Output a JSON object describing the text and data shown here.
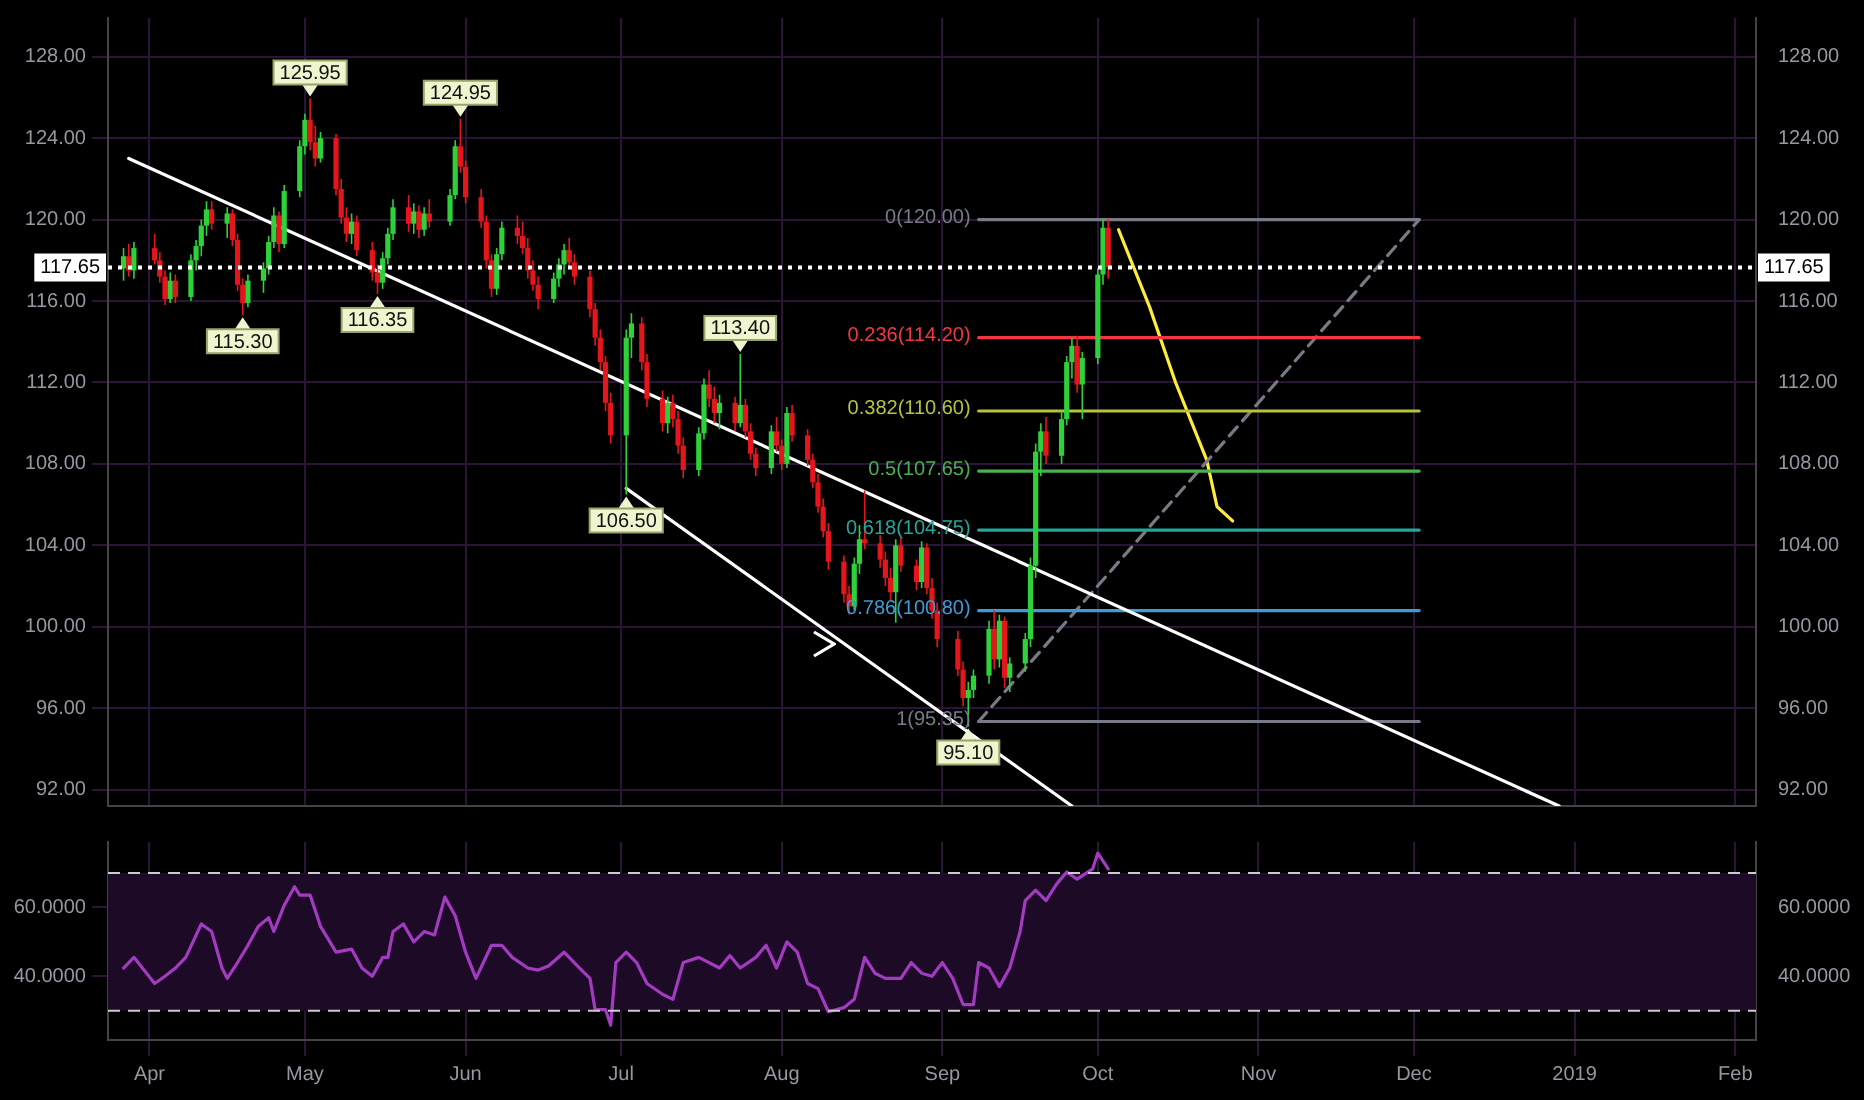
{
  "chart_data": [
    {
      "type": "candlestick",
      "xlim": [
        "2018-03-24",
        "2019-02-05"
      ],
      "xticks": [
        {
          "value": "2018-04-01",
          "label": null
        },
        {
          "value": "2018-05-01",
          "label": null
        },
        {
          "value": "2018-06-01",
          "label": null
        },
        {
          "value": "2018-07-01",
          "label": null
        },
        {
          "value": "2018-08-01",
          "label": null
        },
        {
          "value": "2018-09-01",
          "label": null
        },
        {
          "value": "2018-10-01",
          "label": null
        },
        {
          "value": "2018-11-01",
          "label": null
        },
        {
          "value": "2018-12-01",
          "label": null
        },
        {
          "value": "2019-01-01",
          "label": null
        },
        {
          "value": "2019-02-01",
          "label": null
        }
      ],
      "ylim": [
        91.2,
        129.9
      ],
      "yticks": [
        {
          "value": 92,
          "label": "92.00"
        },
        {
          "value": 96,
          "label": "96.00"
        },
        {
          "value": 100,
          "label": "100.00"
        },
        {
          "value": 104,
          "label": "104.00"
        },
        {
          "value": 108,
          "label": "108.00"
        },
        {
          "value": 112,
          "label": "112.00"
        },
        {
          "value": 116,
          "label": "116.00"
        },
        {
          "value": 120,
          "label": "120.00"
        },
        {
          "value": 124,
          "label": "124.00"
        },
        {
          "value": 128,
          "label": "128.00"
        }
      ],
      "y2lim": [
        91.2,
        129.9
      ],
      "y2ticks": [
        {
          "value": 92,
          "label": "92.00"
        },
        {
          "value": 96,
          "label": "96.00"
        },
        {
          "value": 100,
          "label": "100.00"
        },
        {
          "value": 104,
          "label": "104.00"
        },
        {
          "value": 108,
          "label": "108.00"
        },
        {
          "value": 112,
          "label": "112.00"
        },
        {
          "value": 116,
          "label": "116.00"
        },
        {
          "value": 120,
          "label": "120.00"
        },
        {
          "value": 124,
          "label": "124.00"
        },
        {
          "value": 128,
          "label": "128.00"
        }
      ],
      "tick_labels": "y",
      "grid": true,
      "legend": false,
      "x": [
        "2018-03-27",
        "2018-03-28",
        "2018-03-29",
        "2018-04-02",
        "2018-04-03",
        "2018-04-04",
        "2018-04-05",
        "2018-04-06",
        "2018-04-09",
        "2018-04-10",
        "2018-04-11",
        "2018-04-12",
        "2018-04-13",
        "2018-04-16",
        "2018-04-17",
        "2018-04-18",
        "2018-04-19",
        "2018-04-20",
        "2018-04-23",
        "2018-04-24",
        "2018-04-25",
        "2018-04-26",
        "2018-04-27",
        "2018-04-30",
        "2018-05-01",
        "2018-05-02",
        "2018-05-03",
        "2018-05-04",
        "2018-05-07",
        "2018-05-08",
        "2018-05-09",
        "2018-05-10",
        "2018-05-11",
        "2018-05-14",
        "2018-05-15",
        "2018-05-16",
        "2018-05-17",
        "2018-05-18",
        "2018-05-21",
        "2018-05-22",
        "2018-05-23",
        "2018-05-24",
        "2018-05-25",
        "2018-05-29",
        "2018-05-30",
        "2018-05-31",
        "2018-06-01",
        "2018-06-04",
        "2018-06-05",
        "2018-06-06",
        "2018-06-07",
        "2018-06-08",
        "2018-06-11",
        "2018-06-12",
        "2018-06-13",
        "2018-06-14",
        "2018-06-15",
        "2018-06-18",
        "2018-06-19",
        "2018-06-20",
        "2018-06-21",
        "2018-06-22",
        "2018-06-25",
        "2018-06-26",
        "2018-06-27",
        "2018-06-28",
        "2018-06-29",
        "2018-07-02",
        "2018-07-03",
        "2018-07-05",
        "2018-07-06",
        "2018-07-09",
        "2018-07-10",
        "2018-07-11",
        "2018-07-12",
        "2018-07-13",
        "2018-07-16",
        "2018-07-17",
        "2018-07-18",
        "2018-07-19",
        "2018-07-20",
        "2018-07-23",
        "2018-07-24",
        "2018-07-25",
        "2018-07-26",
        "2018-07-27",
        "2018-07-30",
        "2018-07-31",
        "2018-08-01",
        "2018-08-02",
        "2018-08-03",
        "2018-08-06",
        "2018-08-07",
        "2018-08-08",
        "2018-08-09",
        "2018-08-10",
        "2018-08-13",
        "2018-08-14",
        "2018-08-15",
        "2018-08-16",
        "2018-08-17",
        "2018-08-20",
        "2018-08-21",
        "2018-08-22",
        "2018-08-23",
        "2018-08-24",
        "2018-08-27",
        "2018-08-28",
        "2018-08-29",
        "2018-08-30",
        "2018-08-31",
        "2018-09-04",
        "2018-09-05",
        "2018-09-06",
        "2018-09-07",
        "2018-09-10",
        "2018-09-11",
        "2018-09-12",
        "2018-09-13",
        "2018-09-14",
        "2018-09-17",
        "2018-09-18",
        "2018-09-19",
        "2018-09-20",
        "2018-09-21",
        "2018-09-24",
        "2018-09-25",
        "2018-09-26",
        "2018-09-27",
        "2018-09-28",
        "2018-10-01",
        "2018-10-02",
        "2018-10-03"
      ],
      "ohlc": [
        [
          117.6,
          118.6,
          117.0,
          118.2
        ],
        [
          118.2,
          118.8,
          117.2,
          117.5
        ],
        [
          117.5,
          118.9,
          117.1,
          118.6
        ],
        [
          118.6,
          119.3,
          117.8,
          118.0
        ],
        [
          118.0,
          118.4,
          116.9,
          117.2
        ],
        [
          117.2,
          117.5,
          115.8,
          116.1
        ],
        [
          116.1,
          117.4,
          115.9,
          117.0
        ],
        [
          117.0,
          117.3,
          115.9,
          116.2
        ],
        [
          116.2,
          118.3,
          116.0,
          118.0
        ],
        [
          118.0,
          119.0,
          117.5,
          118.7
        ],
        [
          118.7,
          120.0,
          118.2,
          119.7
        ],
        [
          119.7,
          120.9,
          119.2,
          120.5
        ],
        [
          120.5,
          120.9,
          119.5,
          119.8
        ],
        [
          119.8,
          120.6,
          119.1,
          120.3
        ],
        [
          120.3,
          120.5,
          118.7,
          119.0
        ],
        [
          119.0,
          119.3,
          116.5,
          116.8
        ],
        [
          116.8,
          117.1,
          115.3,
          115.9
        ],
        [
          115.9,
          117.3,
          115.7,
          117.0
        ],
        [
          117.0,
          117.9,
          116.4,
          117.6
        ],
        [
          117.6,
          119.2,
          117.3,
          118.9
        ],
        [
          118.9,
          120.6,
          118.6,
          120.2
        ],
        [
          120.2,
          120.4,
          118.4,
          118.8
        ],
        [
          118.8,
          121.7,
          118.6,
          121.4
        ],
        [
          121.4,
          123.9,
          121.1,
          123.6
        ],
        [
          123.6,
          125.2,
          123.2,
          124.9
        ],
        [
          124.9,
          125.95,
          123.4,
          123.8
        ],
        [
          123.8,
          124.6,
          122.6,
          123.0
        ],
        [
          123.0,
          124.3,
          122.8,
          124.0
        ],
        [
          124.0,
          124.2,
          121.2,
          121.5
        ],
        [
          121.5,
          122.0,
          119.8,
          120.1
        ],
        [
          120.1,
          120.6,
          118.9,
          119.3
        ],
        [
          119.3,
          120.3,
          118.8,
          119.9
        ],
        [
          119.9,
          120.2,
          118.2,
          118.5
        ],
        [
          118.5,
          118.9,
          117.0,
          117.4
        ],
        [
          117.4,
          117.8,
          116.35,
          116.9
        ],
        [
          116.9,
          118.4,
          116.6,
          118.1
        ],
        [
          118.1,
          119.6,
          117.8,
          119.3
        ],
        [
          119.3,
          121.0,
          119.0,
          120.6
        ],
        [
          120.6,
          121.2,
          119.4,
          119.8
        ],
        [
          119.8,
          120.8,
          119.3,
          120.4
        ],
        [
          120.4,
          120.7,
          119.1,
          119.5
        ],
        [
          119.5,
          120.6,
          119.2,
          120.3
        ],
        [
          120.3,
          121.0,
          119.6,
          119.9
        ],
        [
          119.9,
          121.5,
          119.7,
          121.2
        ],
        [
          121.2,
          123.9,
          121.0,
          123.6
        ],
        [
          123.6,
          124.95,
          122.3,
          122.6
        ],
        [
          122.6,
          122.9,
          120.8,
          121.1
        ],
        [
          121.1,
          121.5,
          119.6,
          119.9
        ],
        [
          119.9,
          120.2,
          117.6,
          118.0
        ],
        [
          118.0,
          118.3,
          116.2,
          116.6
        ],
        [
          116.6,
          118.6,
          116.3,
          118.3
        ],
        [
          118.3,
          119.9,
          118.0,
          119.6
        ],
        [
          119.6,
          120.2,
          118.8,
          119.2
        ],
        [
          119.2,
          119.9,
          118.3,
          118.6
        ],
        [
          118.6,
          119.1,
          117.1,
          117.5
        ],
        [
          117.5,
          118.0,
          116.5,
          116.8
        ],
        [
          116.8,
          117.2,
          115.6,
          116.1
        ],
        [
          116.1,
          117.4,
          115.9,
          117.1
        ],
        [
          117.1,
          118.1,
          116.7,
          117.8
        ],
        [
          117.8,
          118.8,
          117.3,
          118.5
        ],
        [
          118.5,
          119.1,
          117.6,
          117.9
        ],
        [
          117.9,
          118.3,
          116.8,
          117.2
        ],
        [
          117.2,
          117.5,
          115.2,
          115.6
        ],
        [
          115.6,
          115.9,
          113.8,
          114.2
        ],
        [
          114.2,
          114.6,
          112.6,
          113.0
        ],
        [
          113.0,
          113.3,
          110.6,
          111.0
        ],
        [
          111.0,
          111.5,
          109.0,
          109.4
        ],
        [
          109.4,
          114.6,
          106.5,
          114.2
        ],
        [
          114.2,
          115.4,
          113.2,
          114.9
        ],
        [
          114.9,
          115.2,
          112.6,
          113.0
        ],
        [
          113.0,
          113.4,
          110.8,
          111.2
        ],
        [
          111.2,
          111.6,
          109.6,
          110.0
        ],
        [
          110.0,
          111.3,
          109.5,
          111.0
        ],
        [
          111.0,
          111.4,
          109.8,
          110.2
        ],
        [
          110.2,
          110.6,
          108.5,
          108.9
        ],
        [
          108.9,
          109.3,
          107.3,
          107.7
        ],
        [
          107.7,
          109.8,
          107.4,
          109.5
        ],
        [
          109.5,
          112.2,
          109.2,
          111.9
        ],
        [
          111.9,
          112.6,
          110.8,
          111.2
        ],
        [
          111.2,
          111.8,
          110.0,
          110.5
        ],
        [
          110.5,
          111.4,
          109.7,
          111.0
        ],
        [
          111.0,
          111.3,
          109.6,
          110.0
        ],
        [
          110.0,
          113.4,
          109.8,
          110.9
        ],
        [
          110.9,
          111.2,
          109.3,
          109.6
        ],
        [
          109.6,
          110.0,
          108.2,
          108.5
        ],
        [
          108.5,
          108.8,
          107.4,
          107.8
        ],
        [
          107.8,
          109.9,
          107.5,
          109.6
        ],
        [
          109.6,
          110.3,
          108.6,
          108.9
        ],
        [
          108.9,
          109.2,
          107.7,
          108.0
        ],
        [
          108.0,
          110.8,
          107.8,
          110.5
        ],
        [
          110.5,
          110.9,
          109.1,
          109.4
        ],
        [
          109.4,
          109.7,
          107.9,
          108.2
        ],
        [
          108.2,
          108.5,
          106.8,
          107.1
        ],
        [
          107.1,
          107.5,
          105.6,
          105.9
        ],
        [
          105.9,
          106.3,
          104.4,
          104.7
        ],
        [
          104.7,
          105.1,
          102.8,
          103.2
        ],
        [
          103.2,
          103.5,
          101.2,
          101.6
        ],
        [
          101.6,
          102.0,
          100.6,
          101.0
        ],
        [
          101.0,
          103.4,
          100.8,
          103.1
        ],
        [
          103.1,
          105.0,
          102.6,
          104.3
        ],
        [
          104.3,
          106.7,
          103.8,
          104.1
        ],
        [
          104.1,
          104.5,
          102.9,
          103.3
        ],
        [
          103.3,
          103.7,
          102.0,
          102.4
        ],
        [
          102.4,
          102.9,
          101.3,
          101.7
        ],
        [
          101.7,
          104.3,
          100.2,
          104.0
        ],
        [
          104.0,
          104.4,
          102.7,
          103.0
        ],
        [
          103.0,
          103.3,
          101.8,
          102.2
        ],
        [
          102.2,
          104.2,
          101.9,
          103.9
        ],
        [
          103.9,
          104.1,
          101.6,
          101.9
        ],
        [
          101.9,
          102.4,
          100.4,
          100.8
        ],
        [
          100.8,
          101.2,
          99.0,
          99.4
        ],
        [
          99.4,
          99.8,
          97.6,
          97.9
        ],
        [
          97.9,
          98.3,
          96.1,
          96.5
        ],
        [
          96.5,
          97.3,
          95.1,
          96.9
        ],
        [
          96.9,
          97.9,
          96.5,
          97.6
        ],
        [
          97.6,
          100.3,
          97.2,
          99.9
        ],
        [
          99.9,
          100.8,
          97.9,
          98.4
        ],
        [
          98.4,
          100.6,
          98.0,
          100.3
        ],
        [
          100.3,
          100.5,
          97.0,
          97.5
        ],
        [
          97.5,
          98.5,
          96.8,
          98.2
        ],
        [
          98.2,
          99.7,
          97.8,
          99.4
        ],
        [
          99.4,
          103.4,
          99.0,
          103.0
        ],
        [
          103.0,
          109.0,
          102.4,
          108.6
        ],
        [
          108.6,
          110.0,
          107.4,
          109.6
        ],
        [
          109.6,
          110.3,
          108.0,
          108.4
        ],
        [
          108.4,
          110.6,
          108.0,
          110.2
        ],
        [
          110.2,
          113.3,
          109.9,
          113.0
        ],
        [
          113.0,
          114.2,
          112.2,
          113.8
        ],
        [
          113.8,
          114.3,
          111.5,
          111.9
        ],
        [
          111.9,
          113.5,
          110.2,
          113.2
        ],
        [
          113.2,
          117.6,
          112.9,
          117.3
        ],
        [
          117.3,
          120.0,
          116.8,
          119.6
        ],
        [
          119.6,
          120.0,
          117.1,
          117.65
        ]
      ],
      "series": [
        {
          "type": "line",
          "color": "#ffffff",
          "x": [
            "2018-03-28",
            "2018-12-29"
          ],
          "values": [
            123.0,
            91.2
          ]
        },
        {
          "type": "line",
          "color": "#ffffff",
          "x": [
            "2018-07-02",
            "2018-09-26"
          ],
          "values": [
            106.8,
            91.2
          ]
        },
        {
          "type": "line",
          "name": "0(120.00)",
          "color": "#787b86",
          "x": [
            "2018-09-08",
            "2018-12-02"
          ],
          "values": [
            120.0,
            120.0
          ]
        },
        {
          "type": "line",
          "name": "0.236(114.20)",
          "color": "#f23645",
          "x": [
            "2018-09-08",
            "2018-12-02"
          ],
          "values": [
            114.2,
            114.2
          ]
        },
        {
          "type": "line",
          "name": "0.382(110.60)",
          "color": "#b8c23c",
          "x": [
            "2018-09-08",
            "2018-12-02"
          ],
          "values": [
            110.6,
            110.6
          ]
        },
        {
          "type": "line",
          "name": "0.5(107.65)",
          "color": "#4caf50",
          "x": [
            "2018-09-08",
            "2018-12-02"
          ],
          "values": [
            107.65,
            107.65
          ]
        },
        {
          "type": "line",
          "name": "0.618(104.75)",
          "color": "#26a69a",
          "x": [
            "2018-09-08",
            "2018-12-02"
          ],
          "values": [
            104.75,
            104.75
          ]
        },
        {
          "type": "line",
          "name": "0.786(100.80)",
          "color": "#3d9bd6",
          "x": [
            "2018-09-08",
            "2018-12-02"
          ],
          "values": [
            100.8,
            100.8
          ]
        },
        {
          "type": "line",
          "name": "1(95.35)",
          "color": "#787b86",
          "x": [
            "2018-09-08",
            "2018-12-02"
          ],
          "values": [
            95.35,
            95.35
          ]
        },
        {
          "type": "line",
          "color": "#787b86",
          "line_style": "dashed",
          "x": [
            "2018-09-08",
            "2018-12-02"
          ],
          "values": [
            95.35,
            120.0
          ]
        },
        {
          "type": "line",
          "color": "#ffeb3b",
          "x": [
            "2018-10-05",
            "2018-10-11",
            "2018-10-16",
            "2018-10-22",
            "2018-10-24",
            "2018-10-27"
          ],
          "values": [
            119.5,
            115.7,
            112.0,
            108.2,
            105.9,
            105.2
          ]
        }
      ],
      "ref_lines": [
        {
          "axis": "y",
          "value": 117.65,
          "label": "117.65",
          "color": "#ffffff",
          "line_style": "dotted"
        }
      ],
      "annotations": [
        {
          "text": "125.95",
          "x": "2018-05-02",
          "y": 125.95
        },
        {
          "text": "124.95",
          "x": "2018-05-31",
          "y": 124.95
        },
        {
          "text": "115.30",
          "x": "2018-04-19",
          "y": 115.3
        },
        {
          "text": "116.35",
          "x": "2018-05-15",
          "y": 116.35
        },
        {
          "text": "106.50",
          "x": "2018-07-02",
          "y": 106.5
        },
        {
          "text": "113.40",
          "x": "2018-07-24",
          "y": 113.4
        },
        {
          "text": "95.10",
          "x": "2018-09-06",
          "y": 95.1
        }
      ]
    },
    {
      "type": "line",
      "xlim": [
        "2018-03-24",
        "2019-02-05"
      ],
      "xticks": [
        {
          "value": "2018-04-01",
          "label": "Apr"
        },
        {
          "value": "2018-05-01",
          "label": "May"
        },
        {
          "value": "2018-06-01",
          "label": "Jun"
        },
        {
          "value": "2018-07-01",
          "label": "Jul"
        },
        {
          "value": "2018-08-01",
          "label": "Aug"
        },
        {
          "value": "2018-09-01",
          "label": "Sep"
        },
        {
          "value": "2018-10-01",
          "label": "Oct"
        },
        {
          "value": "2018-11-01",
          "label": "Nov"
        },
        {
          "value": "2018-12-01",
          "label": "Dec"
        },
        {
          "value": "2019-01-01",
          "label": "2019"
        },
        {
          "value": "2019-02-01",
          "label": "Feb"
        }
      ],
      "ylim": [
        21.5,
        79
      ],
      "yticks": [
        {
          "value": 40,
          "label": "40.0000"
        },
        {
          "value": 60,
          "label": "60.0000"
        }
      ],
      "y2lim": [
        21.5,
        79
      ],
      "y2ticks": [
        {
          "value": 40,
          "label": "40.0000"
        },
        {
          "value": 60,
          "label": "60.0000"
        }
      ],
      "grid": true,
      "legend": false,
      "bands": [
        {
          "axis": "y",
          "from": 30,
          "to": 70,
          "color": "#1c0a26"
        }
      ],
      "ref_lines": [
        {
          "axis": "y",
          "value": 70,
          "color": "#cccccc",
          "line_style": "dashed"
        },
        {
          "axis": "y",
          "value": 30,
          "color": "#cccccc",
          "line_style": "dashed"
        }
      ],
      "series": [
        {
          "color": "#a23bc0",
          "x": [
            "2018-03-27",
            "2018-03-29",
            "2018-04-02",
            "2018-04-04",
            "2018-04-06",
            "2018-04-08",
            "2018-04-11",
            "2018-04-13",
            "2018-04-15",
            "2018-04-16",
            "2018-04-18",
            "2018-04-20",
            "2018-04-22",
            "2018-04-24",
            "2018-04-25",
            "2018-04-27",
            "2018-04-29",
            "2018-04-30",
            "2018-05-02",
            "2018-05-04",
            "2018-05-07",
            "2018-05-10",
            "2018-05-12",
            "2018-05-14",
            "2018-05-16",
            "2018-05-17",
            "2018-05-18",
            "2018-05-20",
            "2018-05-22",
            "2018-05-24",
            "2018-05-26",
            "2018-05-28",
            "2018-05-30",
            "2018-06-01",
            "2018-06-03",
            "2018-06-06",
            "2018-06-08",
            "2018-06-10",
            "2018-06-13",
            "2018-06-15",
            "2018-06-17",
            "2018-06-20",
            "2018-06-23",
            "2018-06-25",
            "2018-06-26",
            "2018-06-28",
            "2018-06-29",
            "2018-06-30",
            "2018-07-02",
            "2018-07-04",
            "2018-07-06",
            "2018-07-09",
            "2018-07-11",
            "2018-07-13",
            "2018-07-16",
            "2018-07-20",
            "2018-07-22",
            "2018-07-24",
            "2018-07-27",
            "2018-07-29",
            "2018-07-31",
            "2018-08-02",
            "2018-08-04",
            "2018-08-06",
            "2018-08-08",
            "2018-08-10",
            "2018-08-13",
            "2018-08-15",
            "2018-08-17",
            "2018-08-19",
            "2018-08-21",
            "2018-08-24",
            "2018-08-26",
            "2018-08-28",
            "2018-08-30",
            "2018-09-01",
            "2018-09-03",
            "2018-09-05",
            "2018-09-07",
            "2018-09-08",
            "2018-09-10",
            "2018-09-12",
            "2018-09-14",
            "2018-09-16",
            "2018-09-17",
            "2018-09-19",
            "2018-09-21",
            "2018-09-23",
            "2018-09-25",
            "2018-09-27",
            "2018-09-30",
            "2018-10-01",
            "2018-10-03"
          ],
          "values": [
            42.4,
            45.5,
            37.9,
            40,
            42.4,
            45.5,
            55.2,
            53,
            42.4,
            39.4,
            44,
            49,
            54.5,
            57,
            53,
            60.6,
            66,
            63.6,
            63.6,
            54.5,
            47,
            47.9,
            42.4,
            40,
            45.5,
            45.5,
            53,
            55.2,
            50,
            53,
            52,
            63,
            57.6,
            47,
            39.4,
            49,
            49,
            45.5,
            42.4,
            41.8,
            43,
            47,
            42.4,
            39.4,
            30.3,
            30.3,
            25.8,
            44,
            47,
            44,
            37.9,
            34.8,
            33.3,
            44,
            45.5,
            42.4,
            46,
            42.4,
            45.5,
            49,
            42.4,
            50,
            47,
            37.9,
            36.4,
            29.7,
            30.9,
            33.3,
            45.5,
            40.9,
            39.4,
            39.4,
            44,
            40.9,
            40,
            44,
            39.4,
            31.8,
            31.8,
            44,
            42.4,
            37,
            42.4,
            53,
            62,
            65,
            62,
            66.7,
            70.3,
            68.2,
            71.2,
            75.8,
            71.2
          ]
        }
      ]
    }
  ]
}
